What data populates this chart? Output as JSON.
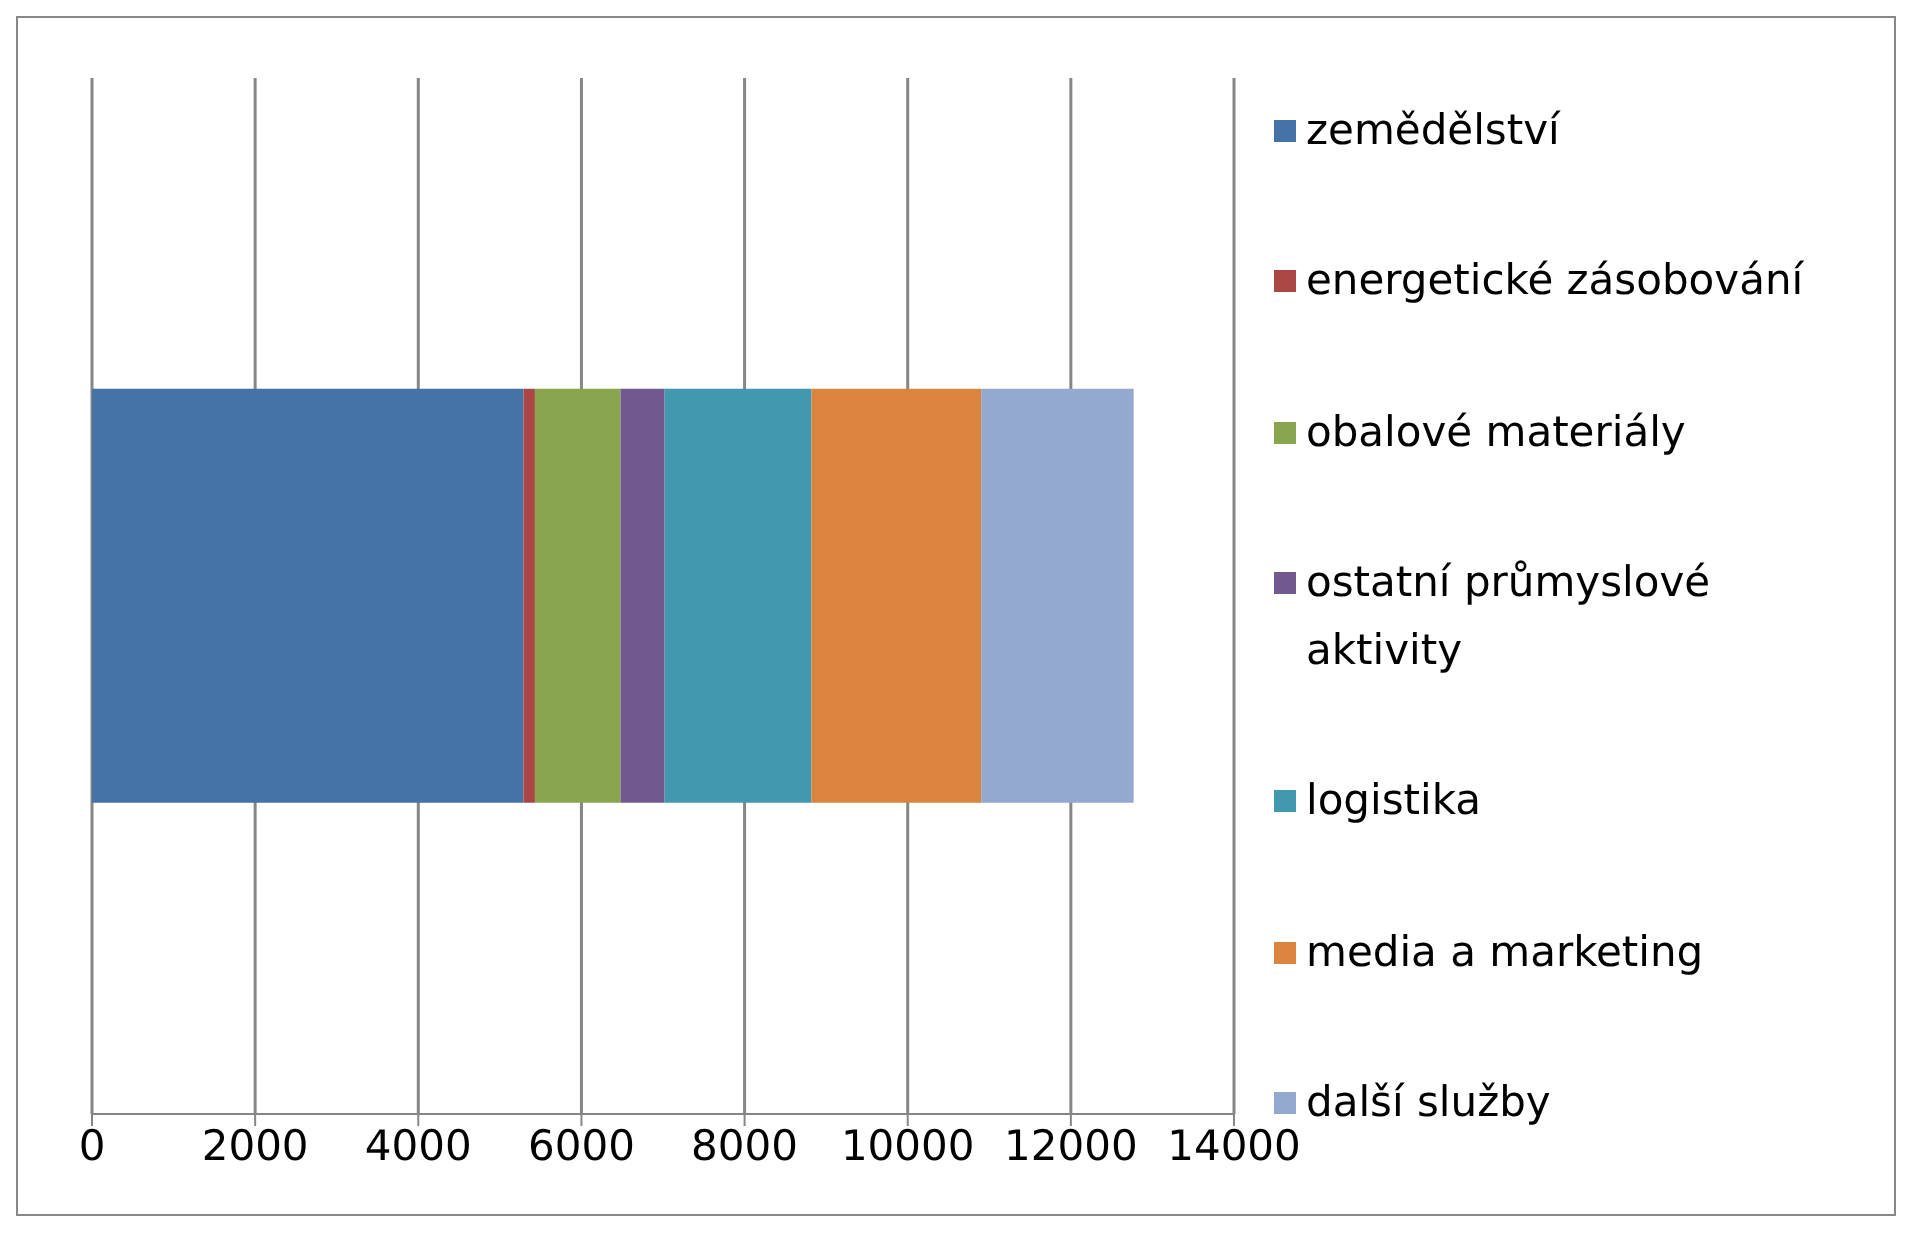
{
  "chart_data": {
    "type": "bar",
    "orientation": "horizontal",
    "stacked": true,
    "categories": [
      null
    ],
    "series": [
      {
        "name": "zemědělství",
        "color": "#4572a7",
        "values": [
          5290
        ]
      },
      {
        "name": "energetické zásobování",
        "color": "#aa4643",
        "values": [
          140
        ]
      },
      {
        "name": "obalové materiály",
        "color": "#89a54e",
        "values": [
          1050
        ]
      },
      {
        "name": "ostatní průmyslové aktivity",
        "color": "#71588f",
        "values": [
          540
        ]
      },
      {
        "name": "logistika",
        "color": "#4198af",
        "values": [
          1800
        ]
      },
      {
        "name": "media a marketing",
        "color": "#db843d",
        "values": [
          2080
        ]
      },
      {
        "name": "další služby",
        "color": "#93a9cf",
        "values": [
          1870
        ]
      }
    ],
    "xlim": [
      0,
      14000
    ],
    "xticks": [
      0,
      2000,
      4000,
      6000,
      8000,
      10000,
      12000,
      14000
    ],
    "grid": "x",
    "legend": "right"
  }
}
